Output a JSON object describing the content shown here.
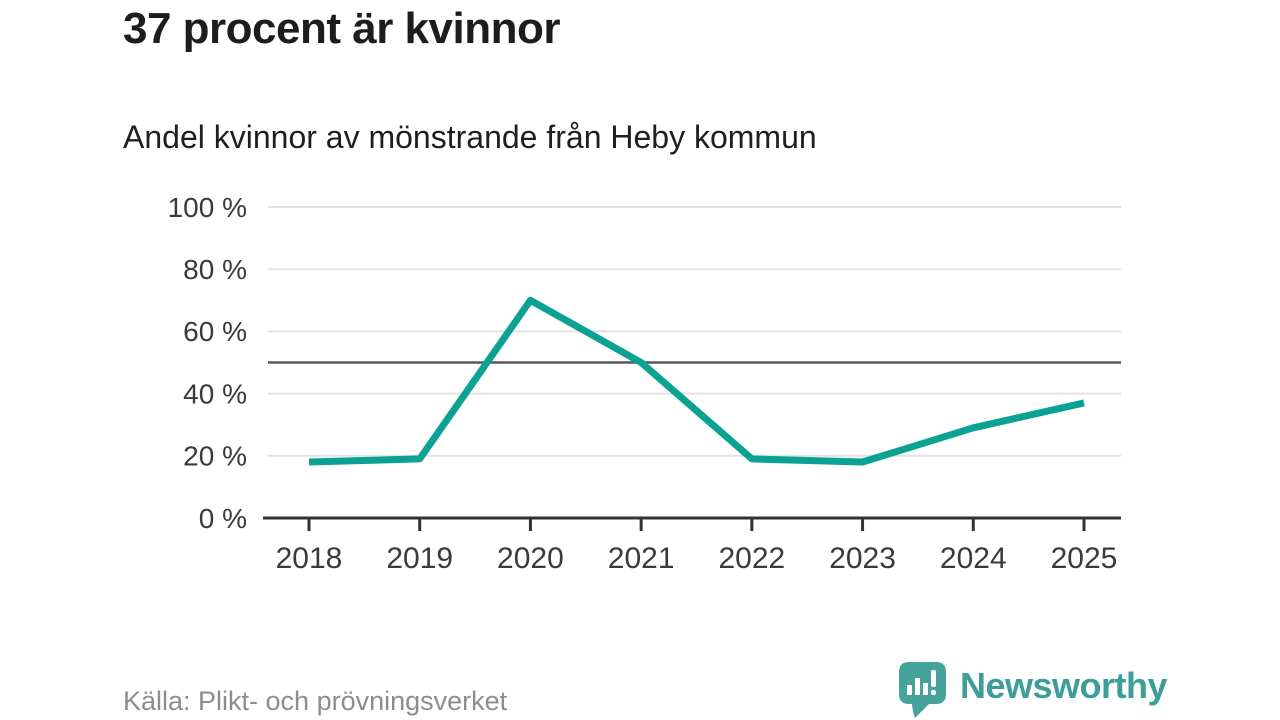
{
  "header": {
    "title": "37 procent är kvinnor",
    "subtitle": "Andel kvinnor av mönstrande från Heby kommun"
  },
  "footer": {
    "source": "Källa: Plikt- och prövningsverket",
    "brand": "Newsworthy"
  },
  "colors": {
    "line": "#0aa293",
    "grid": "#e2e2e2",
    "reference_line": "#58585a",
    "axis": "#333333",
    "tick_text": "#3a3a3a",
    "title_text": "#1d1d1b",
    "source_text": "#8d8d90",
    "logo_mark": "#46a39c",
    "logo_text": "#3c9e97"
  },
  "chart_data": {
    "type": "line",
    "title": "37 procent är kvinnor",
    "subtitle": "Andel kvinnor av mönstrande från Heby kommun",
    "categories": [
      "2018",
      "2019",
      "2020",
      "2021",
      "2022",
      "2023",
      "2024",
      "2025"
    ],
    "values": [
      18,
      19,
      70,
      50,
      19,
      18,
      29,
      37
    ],
    "unit": "%",
    "ylim": [
      0,
      100
    ],
    "yticks": [
      0,
      20,
      40,
      60,
      80,
      100
    ],
    "ytick_labels": [
      "0 %",
      "20 %",
      "40 %",
      "60 %",
      "80 %",
      "100 %"
    ],
    "reference_line": 50,
    "grid": true,
    "legend": "none",
    "xlabel": "",
    "ylabel": "",
    "source": "Källa: Plikt- och prövningsverket"
  }
}
